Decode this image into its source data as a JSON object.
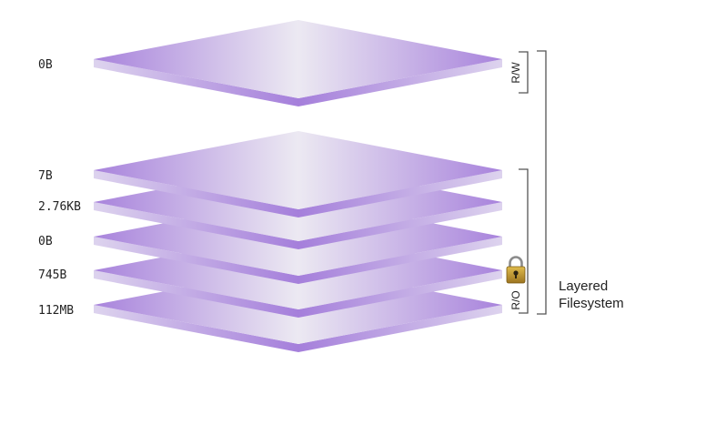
{
  "colors": {
    "layer_edge": "#a883dc",
    "layer_center": "#ece9f2",
    "layer_side": "#b591e4",
    "bracket": "#555555",
    "lock_body": "#b8922c"
  },
  "layers": [
    {
      "size": "0B",
      "group": "rw"
    },
    {
      "size": "7B",
      "group": "ro"
    },
    {
      "size": "2.76KB",
      "group": "ro"
    },
    {
      "size": "0B",
      "group": "ro"
    },
    {
      "size": "745B",
      "group": "ro"
    },
    {
      "size": "112MB",
      "group": "ro"
    }
  ],
  "brackets": {
    "rw_label": "R/W",
    "ro_label": "R/O",
    "filesystem_label_line1": "Layered",
    "filesystem_label_line2": "Filesystem"
  },
  "icons": {
    "ro_group": "padlock-icon"
  }
}
